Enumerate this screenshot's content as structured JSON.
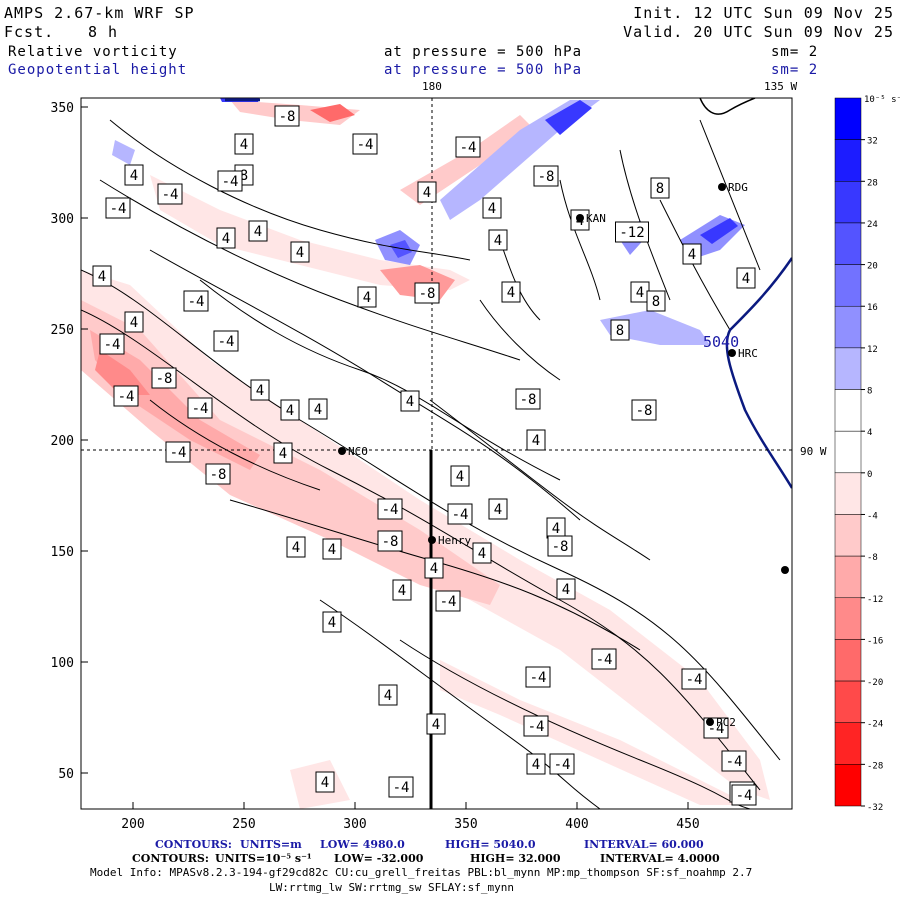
{
  "header": {
    "model": "AMPS 2.67-km WRF SP",
    "init": "Init. 12 UTC Sun 09 Nov 25",
    "fcst_label": "Fcst.",
    "fcst_value": "8 h",
    "valid": "Valid. 20 UTC Sun 09 Nov 25",
    "field1_name": "Relative vorticity",
    "field1_level": "at pressure =  500 hPa",
    "field1_sm": "sm= 2",
    "field2_name": "Geopotential height",
    "field2_level": "at pressure =  500 hPa",
    "field2_sm": "sm= 2"
  },
  "map": {
    "lon_label_top": "180",
    "lon_label_topright": "135 W",
    "lat_label_right": "90 W",
    "x_ticks": [
      "200",
      "250",
      "300",
      "350",
      "400",
      "450"
    ],
    "y_ticks": [
      "350",
      "300",
      "250",
      "200",
      "150",
      "100",
      "50"
    ],
    "stations": [
      "NCO",
      "Henry",
      "KAN",
      "RDG",
      "HRC",
      "PC2"
    ],
    "height_contour_label": "5040",
    "vorticity_labels": [
      "-8",
      "4",
      "-4",
      "-4",
      "4",
      "8",
      "-4",
      "-4",
      "-8",
      "4",
      "4",
      "-4",
      "4",
      "4",
      "4",
      "4",
      "4",
      "4",
      "4",
      "-4",
      "-8",
      "4",
      "-4",
      "4",
      "-4",
      "8",
      "-12",
      "4",
      "4",
      "-8",
      "-8",
      "4",
      "4",
      "4",
      "4",
      "-8",
      "-4",
      "-4",
      "4",
      "4",
      "4",
      "-8",
      "-4",
      "4",
      "-4",
      "-4",
      "4",
      "-8",
      "4",
      "4",
      "4",
      "4",
      "-8",
      "-4",
      "4",
      "4",
      "4",
      "8",
      "8",
      "8",
      "4",
      "4",
      "4",
      "-4",
      "-4",
      "-4",
      "-4",
      "-4",
      "-4",
      "-4",
      "4",
      "4",
      "-4",
      "-4",
      "-4"
    ]
  },
  "colorbar": {
    "unit": "10⁻⁵ s⁻¹",
    "ticks": [
      "32",
      "28",
      "24",
      "20",
      "16",
      "12",
      "8",
      "4",
      "0",
      "-4",
      "-8",
      "-12",
      "-16",
      "-20",
      "-24",
      "-28",
      "-32"
    ],
    "colors": [
      "#0000ff",
      "#1c1cff",
      "#3838ff",
      "#5454ff",
      "#7272ff",
      "#9090ff",
      "#b6b6ff",
      "#ffffff",
      "#ffffff",
      "#ffe6e6",
      "#ffcaca",
      "#ffaaaa",
      "#ff8a8a",
      "#ff6a6a",
      "#ff4a4a",
      "#ff2424",
      "#ff0000"
    ]
  },
  "footer": {
    "contours1_label": "CONTOURS:",
    "contours1_units": "UNITS=m",
    "contours1_low": "LOW=  4980.0",
    "contours1_high": "HIGH=  5040.0",
    "contours1_interval": "INTERVAL=  60.000",
    "contours2_label": "CONTOURS:",
    "contours2_units": "UNITS=10⁻⁵ s⁻¹",
    "contours2_low": "LOW= -32.000",
    "contours2_high": "HIGH= 32.000",
    "contours2_interval": "INTERVAL= 4.0000",
    "model_info": "Model Info: MPASv8.2.3-194-gf29cd82c CU:cu_grell_freitas PBL:bl_mynn MP:mp_thompson SF:sf_noahmp 2.7",
    "model_info2": "LW:rrtmg_lw SW:rrtmg_sw SFLAY:sf_mynn"
  }
}
